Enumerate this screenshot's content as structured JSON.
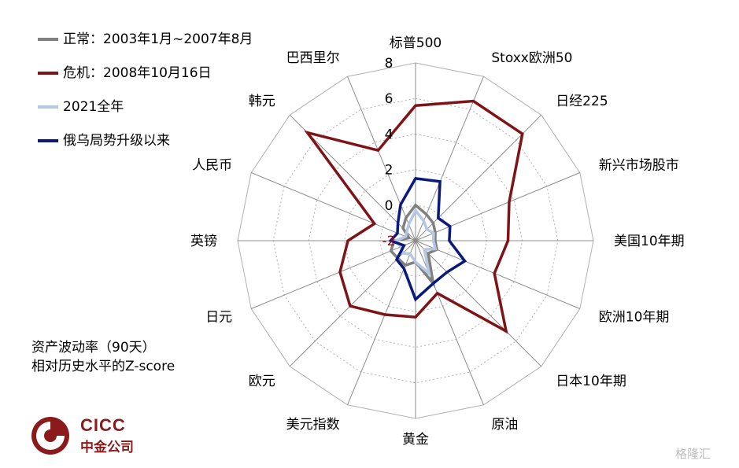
{
  "chart_data": {
    "type": "radar",
    "axes": [
      "标普500",
      "Stoxx欧洲50",
      "日经225",
      "新兴市场股市",
      "美国10年期",
      "欧洲10年期",
      "日本10年期",
      "原油",
      "黄金",
      "美元指数",
      "欧元",
      "日元",
      "英镑",
      "人民币",
      "韩元",
      "巴西里尔"
    ],
    "rlim": [
      -2,
      8
    ],
    "ticks": [
      -2,
      0,
      2,
      4,
      6,
      8
    ],
    "tick_labels": [
      "-2",
      "0",
      "2",
      "4",
      "6",
      "8"
    ],
    "grid": true,
    "legend_position": "top-left",
    "series": [
      {
        "name": "正常：2003年1月~2007年8月",
        "color": "#808080",
        "values": [
          0.0,
          -0.4,
          -0.6,
          -0.8,
          -0.9,
          -0.7,
          -1.0,
          0.6,
          -0.8,
          -0.5,
          -0.6,
          -0.5,
          -0.8,
          -1.6,
          -1.0,
          -0.6
        ]
      },
      {
        "name": "危机：2008年10月16日",
        "color": "#7f1416",
        "values": [
          5.6,
          6.5,
          6.5,
          3.7,
          3.2,
          2.8,
          5.2,
          1.2,
          2.3,
          2.5,
          3.2,
          2.6,
          1.8,
          0.5,
          6.6,
          3.5
        ]
      },
      {
        "name": "2021全年",
        "color": "#b4c7e3",
        "values": [
          -0.3,
          -0.8,
          -1.1,
          -0.9,
          -1.0,
          -0.8,
          -1.3,
          0.0,
          -0.8,
          -1.2,
          -1.0,
          -1.1,
          -0.9,
          -1.4,
          -1.3,
          -1.0
        ]
      },
      {
        "name": "俄乌局势升级以来",
        "color": "#0a1a7a",
        "values": [
          1.5,
          1.6,
          -0.2,
          0.1,
          -0.1,
          1.0,
          0.5,
          0.6,
          1.3,
          -0.3,
          -0.5,
          -1.3,
          -0.6,
          -0.9,
          -0.6,
          0.2
        ]
      }
    ]
  },
  "note_lines": [
    "资产波动率（90天）",
    "相对历史水平的Z-score"
  ],
  "logo": {
    "en": "CICC",
    "cn": "中金公司",
    "color": "#8b1a1a"
  },
  "watermark": "格隆汇"
}
